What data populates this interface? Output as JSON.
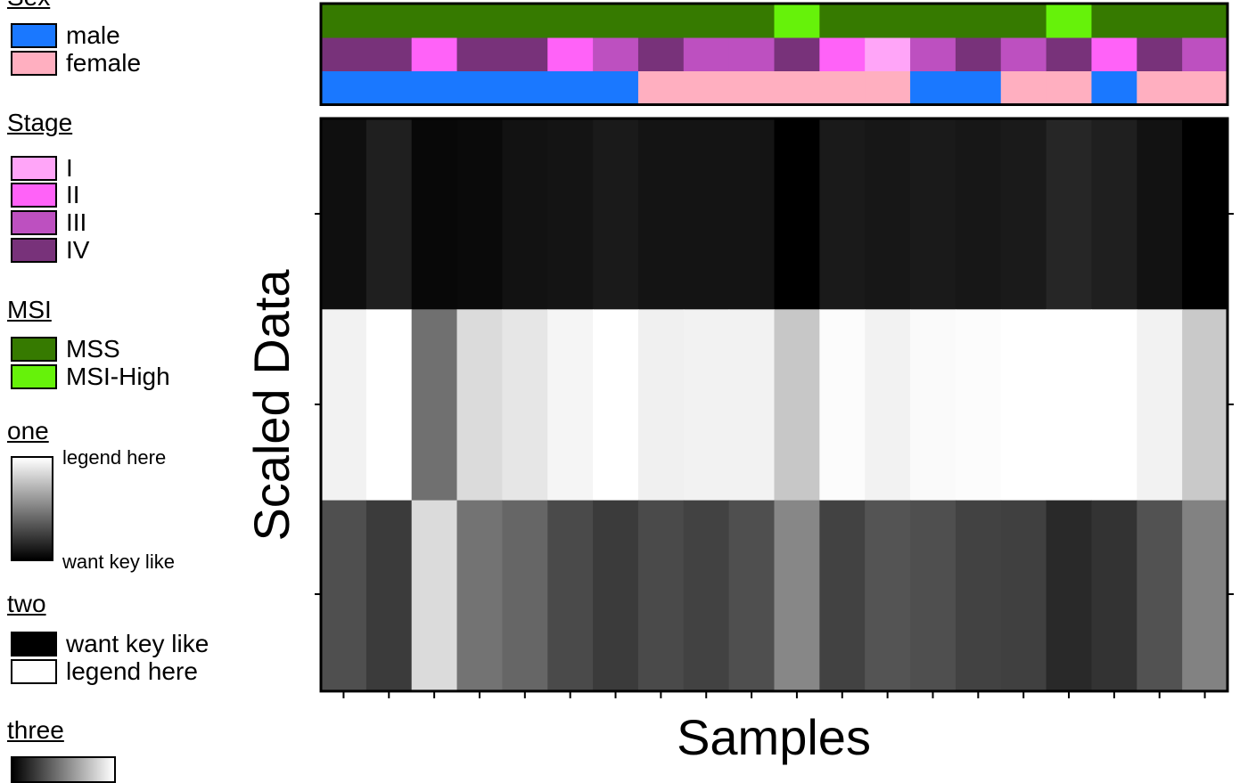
{
  "chart_data": {
    "type": "heatmap",
    "xlabel": "Samples",
    "ylabel": "Scaled Data",
    "n_samples": 20,
    "rows": [
      {
        "values": [
          0.06,
          0.12,
          0.03,
          0.04,
          0.07,
          0.08,
          0.1,
          0.08,
          0.08,
          0.08,
          0.0,
          0.1,
          0.09,
          0.1,
          0.09,
          0.1,
          0.15,
          0.12,
          0.07,
          0.0
        ]
      },
      {
        "values": [
          0.95,
          1.0,
          0.44,
          0.86,
          0.9,
          0.96,
          1.0,
          0.94,
          0.95,
          0.95,
          0.78,
          0.99,
          0.95,
          0.98,
          0.99,
          1.0,
          1.0,
          1.0,
          0.95,
          0.79
        ]
      },
      {
        "values": [
          0.31,
          0.23,
          0.86,
          0.45,
          0.4,
          0.29,
          0.23,
          0.29,
          0.26,
          0.31,
          0.53,
          0.26,
          0.33,
          0.31,
          0.26,
          0.25,
          0.16,
          0.2,
          0.32,
          0.51
        ]
      }
    ],
    "annotations": [
      {
        "name": "MSI",
        "values": [
          "MSS",
          "MSS",
          "MSS",
          "MSS",
          "MSS",
          "MSS",
          "MSS",
          "MSS",
          "MSS",
          "MSS",
          "MSI-High",
          "MSS",
          "MSS",
          "MSS",
          "MSS",
          "MSS",
          "MSI-High",
          "MSS",
          "MSS",
          "MSS"
        ]
      },
      {
        "name": "Stage",
        "values": [
          "IV",
          "IV",
          "II",
          "IV",
          "IV",
          "II",
          "III",
          "IV",
          "III",
          "III",
          "IV",
          "II",
          "I",
          "III",
          "IV",
          "III",
          "IV",
          "II",
          "IV",
          "III"
        ]
      },
      {
        "name": "Sex",
        "values": [
          "male",
          "male",
          "male",
          "male",
          "male",
          "male",
          "male",
          "female",
          "female",
          "female",
          "female",
          "female",
          "female",
          "male",
          "male",
          "female",
          "female",
          "male",
          "female",
          "female"
        ]
      }
    ],
    "legends": {
      "sex": {
        "title": "Sex",
        "items": [
          {
            "label": "male",
            "color": "#1a78ff"
          },
          {
            "label": "female",
            "color": "#ffafc0"
          }
        ]
      },
      "stage": {
        "title": "Stage",
        "items": [
          {
            "label": "I",
            "color": "#ffa5f8"
          },
          {
            "label": "II",
            "color": "#ff62f8"
          },
          {
            "label": "III",
            "color": "#bd50c0"
          },
          {
            "label": "IV",
            "color": "#78327a"
          }
        ]
      },
      "msi": {
        "title": "MSI",
        "items": [
          {
            "label": "MSS",
            "color": "#367a00"
          },
          {
            "label": "MSI-High",
            "color": "#66f20a"
          }
        ]
      },
      "one": {
        "title": "one",
        "top_label": "legend here",
        "bottom_label": "want key like"
      },
      "two": {
        "title": "two",
        "items": [
          {
            "label": "want key like",
            "color": "#000000"
          },
          {
            "label": "legend here",
            "color": "#ffffff"
          }
        ]
      },
      "three": {
        "title": "three"
      }
    }
  }
}
